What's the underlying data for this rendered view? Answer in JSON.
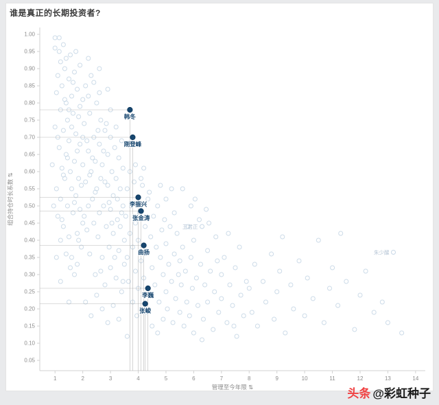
{
  "watermark": {
    "brand": "头条",
    "handle": "@彩虹种子",
    "brand_color": "#f04142"
  },
  "icons": {
    "sort_icon": "⇅"
  },
  "colors": {
    "background_point": "#c7d7e6",
    "faint_label": "#b6c5d5",
    "highlight_point": "#17466f",
    "highlight_stroke": "#0f3a5f",
    "reference_line": "#a8a8a8",
    "axis_text": "#8c8c8c",
    "axis_line": "#d2d2d2",
    "title_text": "#3a3a3a"
  },
  "chart_data": {
    "type": "scatter",
    "title": "谁是真正的长期投资者?",
    "xlabel": "管理至今年限",
    "ylabel": "组合持仓时长系数",
    "xlim": [
      0.45,
      14.35
    ],
    "ylim": [
      0.02,
      1.02
    ],
    "x_ticks": [
      1,
      2,
      3,
      4,
      5,
      6,
      7,
      8,
      9,
      10,
      11,
      12,
      13,
      14
    ],
    "y_ticks": [
      0.05,
      0.1,
      0.15,
      0.2,
      0.25,
      0.3,
      0.35,
      0.4,
      0.45,
      0.5,
      0.55,
      0.6,
      0.65,
      0.7,
      0.75,
      0.8,
      0.85,
      0.9,
      0.95,
      1.0
    ],
    "grid": false,
    "legend": false,
    "highlighted_points": [
      {
        "name": "韩冬",
        "x": 3.7,
        "y": 0.78
      },
      {
        "name": "刚登峰",
        "x": 3.8,
        "y": 0.7
      },
      {
        "name": "李振兴",
        "x": 4.0,
        "y": 0.525
      },
      {
        "name": "张金涛",
        "x": 4.1,
        "y": 0.485
      },
      {
        "name": "曲扬",
        "x": 4.2,
        "y": 0.385
      },
      {
        "name": "李巍",
        "x": 4.35,
        "y": 0.26
      },
      {
        "name": "张峻",
        "x": 4.25,
        "y": 0.215
      }
    ],
    "labeled_points": [
      {
        "name": "朱少醒",
        "x": 13.2,
        "y": 0.365
      },
      {
        "name": "王君正",
        "x": 6.3,
        "y": 0.44
      }
    ],
    "background_points": [
      [
        0.9,
        0.62
      ],
      [
        1.0,
        0.96
      ],
      [
        1.0,
        0.73
      ],
      [
        1.05,
        0.55
      ],
      [
        1.1,
        0.88
      ],
      [
        1.1,
        0.47
      ],
      [
        1.15,
        0.95
      ],
      [
        1.15,
        0.67
      ],
      [
        1.2,
        0.92
      ],
      [
        1.2,
        0.78
      ],
      [
        1.2,
        0.52
      ],
      [
        1.25,
        0.85
      ],
      [
        1.25,
        0.61
      ],
      [
        1.3,
        0.97
      ],
      [
        1.3,
        0.72
      ],
      [
        1.3,
        0.44
      ],
      [
        1.35,
        0.9
      ],
      [
        1.35,
        0.58
      ],
      [
        1.4,
        0.93
      ],
      [
        1.4,
        0.8
      ],
      [
        1.4,
        0.65
      ],
      [
        1.45,
        0.5
      ],
      [
        1.45,
        0.75
      ],
      [
        1.5,
        0.87
      ],
      [
        1.5,
        0.69
      ],
      [
        1.5,
        0.41
      ],
      [
        1.55,
        0.94
      ],
      [
        1.55,
        0.6
      ],
      [
        1.6,
        0.82
      ],
      [
        1.6,
        0.55
      ],
      [
        1.6,
        0.35
      ],
      [
        1.65,
        0.77
      ],
      [
        1.65,
        0.48
      ],
      [
        1.7,
        0.89
      ],
      [
        1.7,
        0.63
      ],
      [
        1.7,
        0.3
      ],
      [
        1.75,
        0.71
      ],
      [
        1.75,
        0.53
      ],
      [
        1.8,
        0.84
      ],
      [
        1.8,
        0.66
      ],
      [
        1.8,
        0.42
      ],
      [
        1.85,
        0.58
      ],
      [
        1.85,
        0.76
      ],
      [
        1.9,
        0.91
      ],
      [
        1.9,
        0.49
      ],
      [
        1.9,
        0.68
      ],
      [
        1.95,
        0.38
      ],
      [
        1.95,
        0.56
      ],
      [
        2.0,
        0.81
      ],
      [
        2.0,
        0.62
      ],
      [
        2.0,
        0.45
      ],
      [
        1.1,
        0.7
      ],
      [
        1.2,
        0.4
      ],
      [
        1.3,
        0.59
      ],
      [
        1.4,
        0.36
      ],
      [
        1.5,
        0.78
      ],
      [
        1.6,
        0.73
      ],
      [
        1.7,
        0.51
      ],
      [
        1.8,
        0.33
      ],
      [
        1.9,
        0.79
      ],
      [
        2.0,
        0.7
      ],
      [
        1.05,
        0.83
      ],
      [
        1.25,
        0.46
      ],
      [
        1.45,
        0.64
      ],
      [
        1.65,
        0.86
      ],
      [
        1.85,
        0.4
      ],
      [
        0.95,
        0.5
      ],
      [
        1.55,
        0.32
      ],
      [
        1.75,
        0.95
      ],
      [
        1.35,
        0.81
      ],
      [
        1.0,
        0.99
      ],
      [
        1.15,
        0.99
      ],
      [
        2.2,
        0.93
      ],
      [
        2.6,
        0.9
      ],
      [
        1.2,
        0.28
      ],
      [
        1.5,
        0.22
      ],
      [
        1.05,
        0.35
      ],
      [
        2.05,
        0.74
      ],
      [
        2.1,
        0.57
      ],
      [
        2.1,
        0.85
      ],
      [
        2.15,
        0.43
      ],
      [
        2.2,
        0.66
      ],
      [
        2.2,
        0.5
      ],
      [
        2.25,
        0.77
      ],
      [
        2.25,
        0.36
      ],
      [
        2.3,
        0.6
      ],
      [
        2.3,
        0.88
      ],
      [
        2.35,
        0.52
      ],
      [
        2.4,
        0.7
      ],
      [
        2.4,
        0.45
      ],
      [
        2.45,
        0.63
      ],
      [
        2.45,
        0.3
      ],
      [
        2.5,
        0.8
      ],
      [
        2.5,
        0.55
      ],
      [
        2.55,
        0.41
      ],
      [
        2.6,
        0.68
      ],
      [
        2.6,
        0.48
      ],
      [
        2.65,
        0.58
      ],
      [
        2.65,
        0.75
      ],
      [
        2.7,
        0.35
      ],
      [
        2.7,
        0.62
      ],
      [
        2.75,
        0.5
      ],
      [
        2.8,
        0.72
      ],
      [
        2.8,
        0.27
      ],
      [
        2.85,
        0.44
      ],
      [
        2.9,
        0.65
      ],
      [
        2.9,
        0.56
      ],
      [
        2.95,
        0.38
      ],
      [
        3.0,
        0.7
      ],
      [
        3.0,
        0.49
      ],
      [
        3.0,
        0.32
      ],
      [
        3.05,
        0.6
      ],
      [
        3.1,
        0.53
      ],
      [
        3.1,
        0.42
      ],
      [
        3.15,
        0.67
      ],
      [
        3.2,
        0.29
      ],
      [
        3.2,
        0.58
      ],
      [
        3.25,
        0.46
      ],
      [
        3.3,
        0.64
      ],
      [
        3.3,
        0.37
      ],
      [
        3.35,
        0.55
      ],
      [
        3.4,
        0.25
      ],
      [
        3.4,
        0.48
      ],
      [
        3.45,
        0.61
      ],
      [
        3.5,
        0.4
      ],
      [
        3.5,
        0.33
      ],
      [
        2.1,
        0.22
      ],
      [
        2.3,
        0.18
      ],
      [
        2.5,
        0.24
      ],
      [
        2.7,
        0.2
      ],
      [
        2.9,
        0.16
      ],
      [
        3.1,
        0.21
      ],
      [
        3.3,
        0.17
      ],
      [
        2.2,
        0.82
      ],
      [
        2.4,
        0.86
      ],
      [
        2.6,
        0.83
      ],
      [
        2.8,
        0.57
      ],
      [
        3.0,
        0.78
      ],
      [
        3.2,
        0.73
      ],
      [
        3.4,
        0.69
      ],
      [
        2.15,
        0.69
      ],
      [
        2.35,
        0.64
      ],
      [
        2.55,
        0.72
      ],
      [
        2.75,
        0.66
      ],
      [
        2.95,
        0.51
      ],
      [
        3.15,
        0.35
      ],
      [
        3.35,
        0.44
      ],
      [
        2.05,
        0.47
      ],
      [
        2.45,
        0.54
      ],
      [
        2.85,
        0.74
      ],
      [
        3.25,
        0.52
      ],
      [
        3.45,
        0.28
      ],
      [
        2.25,
        0.59
      ],
      [
        2.65,
        0.31
      ],
      [
        3.05,
        0.45
      ],
      [
        3.45,
        0.5
      ],
      [
        2.9,
        0.84
      ],
      [
        3.55,
        0.47
      ],
      [
        3.6,
        0.35
      ],
      [
        3.6,
        0.55
      ],
      [
        3.65,
        0.28
      ],
      [
        3.7,
        0.42
      ],
      [
        3.75,
        0.5
      ],
      [
        3.8,
        0.22
      ],
      [
        3.8,
        0.38
      ],
      [
        3.85,
        0.57
      ],
      [
        3.9,
        0.31
      ],
      [
        3.9,
        0.45
      ],
      [
        3.95,
        0.18
      ],
      [
        4.0,
        0.4
      ],
      [
        4.0,
        0.26
      ],
      [
        4.05,
        0.48
      ],
      [
        4.1,
        0.34
      ],
      [
        4.15,
        0.56
      ],
      [
        4.2,
        0.29
      ],
      [
        4.25,
        0.44
      ],
      [
        4.3,
        0.19
      ],
      [
        4.3,
        0.37
      ],
      [
        4.35,
        0.52
      ],
      [
        4.4,
        0.24
      ],
      [
        4.45,
        0.41
      ],
      [
        4.5,
        0.32
      ],
      [
        4.5,
        0.15
      ],
      [
        4.55,
        0.47
      ],
      [
        4.6,
        0.27
      ],
      [
        4.65,
        0.38
      ],
      [
        4.7,
        0.5
      ],
      [
        4.75,
        0.22
      ],
      [
        4.8,
        0.35
      ],
      [
        4.85,
        0.43
      ],
      [
        4.9,
        0.17
      ],
      [
        4.9,
        0.3
      ],
      [
        4.95,
        0.46
      ],
      [
        5.0,
        0.25
      ],
      [
        5.0,
        0.39
      ],
      [
        5.05,
        0.2
      ],
      [
        5.1,
        0.33
      ],
      [
        5.15,
        0.44
      ],
      [
        5.2,
        0.28
      ],
      [
        5.25,
        0.16
      ],
      [
        5.3,
        0.36
      ],
      [
        5.35,
        0.23
      ],
      [
        5.4,
        0.42
      ],
      [
        5.45,
        0.3
      ],
      [
        5.5,
        0.19
      ],
      [
        3.7,
        0.6
      ],
      [
        3.9,
        0.62
      ],
      [
        4.1,
        0.58
      ],
      [
        4.4,
        0.54
      ],
      [
        4.7,
        0.13
      ],
      [
        5.0,
        0.52
      ],
      [
        5.3,
        0.48
      ],
      [
        5.5,
        0.34
      ],
      [
        3.6,
        0.12
      ],
      [
        4.2,
        0.61
      ],
      [
        4.8,
        0.56
      ],
      [
        5.2,
        0.55
      ],
      [
        5.55,
        0.27
      ],
      [
        5.6,
        0.38
      ],
      [
        5.65,
        0.15
      ],
      [
        5.7,
        0.31
      ],
      [
        5.75,
        0.22
      ],
      [
        5.8,
        0.44
      ],
      [
        5.85,
        0.18
      ],
      [
        5.9,
        0.35
      ],
      [
        5.95,
        0.26
      ],
      [
        6.0,
        0.4
      ],
      [
        6.0,
        0.13
      ],
      [
        6.1,
        0.29
      ],
      [
        6.15,
        0.21
      ],
      [
        6.2,
        0.46
      ],
      [
        6.25,
        0.33
      ],
      [
        6.35,
        0.17
      ],
      [
        6.4,
        0.27
      ],
      [
        6.5,
        0.37
      ],
      [
        6.5,
        0.22
      ],
      [
        6.6,
        0.31
      ],
      [
        6.7,
        0.14
      ],
      [
        6.75,
        0.25
      ],
      [
        6.8,
        0.41
      ],
      [
        6.9,
        0.19
      ],
      [
        7.0,
        0.3
      ],
      [
        7.0,
        0.23
      ],
      [
        7.1,
        0.35
      ],
      [
        7.2,
        0.16
      ],
      [
        7.3,
        0.27
      ],
      [
        7.4,
        0.21
      ],
      [
        7.5,
        0.32
      ],
      [
        7.55,
        0.12
      ],
      [
        7.7,
        0.24
      ],
      [
        7.8,
        0.18
      ],
      [
        7.9,
        0.28
      ],
      [
        6.05,
        0.52
      ],
      [
        6.45,
        0.49
      ],
      [
        6.85,
        0.34
      ],
      [
        7.25,
        0.42
      ],
      [
        7.65,
        0.38
      ],
      [
        5.6,
        0.55
      ],
      [
        5.9,
        0.5
      ],
      [
        6.3,
        0.11
      ],
      [
        7.45,
        0.15
      ],
      [
        6.55,
        0.45
      ],
      [
        8.0,
        0.26
      ],
      [
        8.1,
        0.19
      ],
      [
        8.2,
        0.33
      ],
      [
        8.3,
        0.15
      ],
      [
        8.5,
        0.28
      ],
      [
        8.6,
        0.22
      ],
      [
        8.8,
        0.36
      ],
      [
        8.9,
        0.17
      ],
      [
        9.0,
        0.25
      ],
      [
        9.1,
        0.31
      ],
      [
        9.3,
        0.13
      ],
      [
        9.5,
        0.27
      ],
      [
        9.6,
        0.2
      ],
      [
        9.8,
        0.34
      ],
      [
        10.0,
        0.18
      ],
      [
        10.1,
        0.29
      ],
      [
        10.3,
        0.23
      ],
      [
        10.5,
        0.4
      ],
      [
        10.7,
        0.16
      ],
      [
        10.9,
        0.26
      ],
      [
        11.0,
        0.32
      ],
      [
        11.2,
        0.21
      ],
      [
        11.5,
        0.28
      ],
      [
        11.8,
        0.14
      ],
      [
        12.0,
        0.24
      ],
      [
        12.2,
        0.31
      ],
      [
        12.5,
        0.19
      ],
      [
        12.8,
        0.22
      ],
      [
        13.0,
        0.16
      ],
      [
        13.5,
        0.13
      ],
      [
        11.3,
        0.42
      ],
      [
        9.2,
        0.41
      ]
    ]
  }
}
